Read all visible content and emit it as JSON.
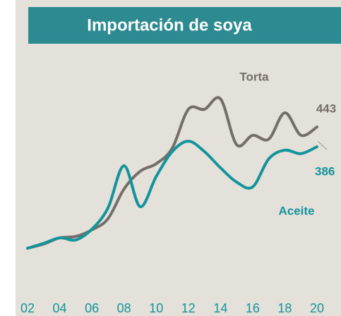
{
  "chart_data": {
    "type": "line",
    "title": "Importación de soya",
    "categories": [
      "02",
      null,
      "04",
      null,
      "06",
      null,
      "08",
      null,
      "10",
      null,
      "12",
      null,
      "14",
      null,
      "16",
      null,
      "18",
      null,
      "20"
    ],
    "series": [
      {
        "name": "Torta",
        "color": "#736e69",
        "values": [
          93,
          105,
          123,
          127,
          146,
          178,
          264,
          315,
          337,
          382,
          494,
          494,
          524,
          392,
          419,
          408,
          484,
          419,
          443
        ]
      },
      {
        "name": "Aceite",
        "color": "#13939b",
        "values": [
          93,
          107,
          123,
          117,
          148,
          209,
          331,
          213,
          300,
          372,
          402,
          372,
          325,
          284,
          270,
          351,
          376,
          366,
          386
        ]
      }
    ],
    "ylim": [
      0,
      700
    ]
  }
}
